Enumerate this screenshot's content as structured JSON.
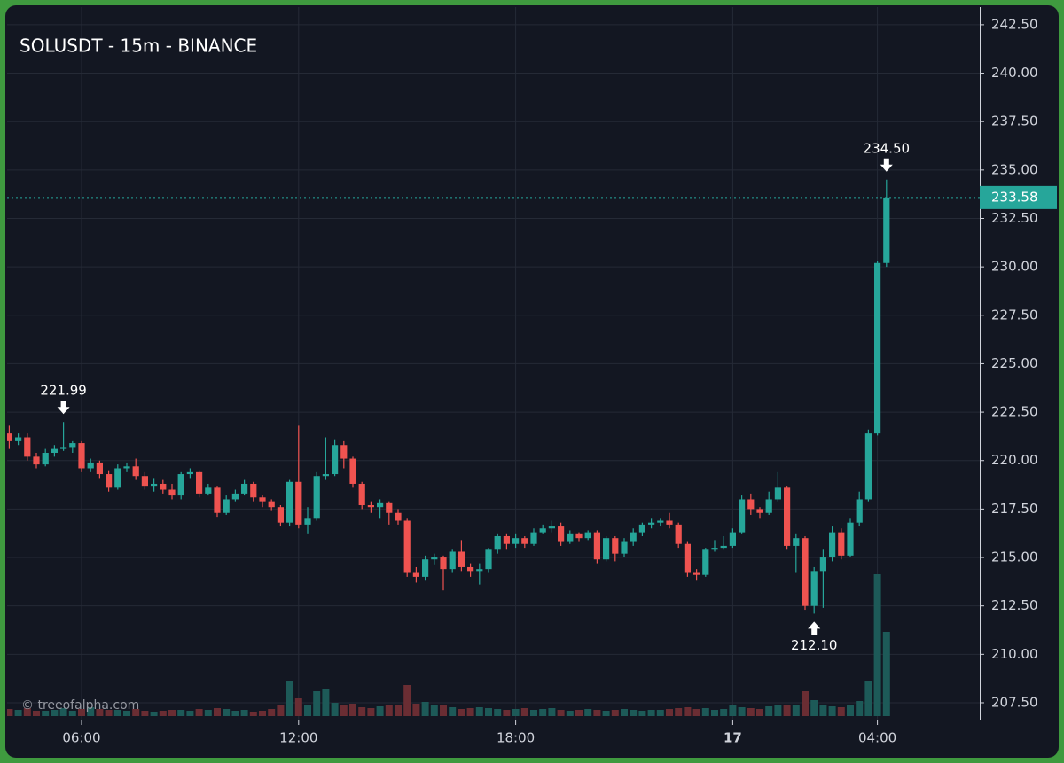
{
  "chart_data": {
    "type": "candlestick",
    "title": "SOLUSDT - 15m - BINANCE",
    "watermark": "© treeofalpha.com",
    "x": [
      "16 04:00",
      "16 04:15",
      "16 04:30",
      "16 04:45",
      "16 05:00",
      "16 05:15",
      "16 05:30",
      "16 05:45",
      "16 06:00",
      "16 06:15",
      "16 06:30",
      "16 06:45",
      "16 07:00",
      "16 07:15",
      "16 07:30",
      "16 07:45",
      "16 08:00",
      "16 08:15",
      "16 08:30",
      "16 08:45",
      "16 09:00",
      "16 09:15",
      "16 09:30",
      "16 09:45",
      "16 10:00",
      "16 10:15",
      "16 10:30",
      "16 10:45",
      "16 11:00",
      "16 11:15",
      "16 11:30",
      "16 11:45",
      "16 12:00",
      "16 12:15",
      "16 12:30",
      "16 12:45",
      "16 13:00",
      "16 13:15",
      "16 13:30",
      "16 13:45",
      "16 14:00",
      "16 14:15",
      "16 14:30",
      "16 14:45",
      "16 15:00",
      "16 15:15",
      "16 15:30",
      "16 15:45",
      "16 16:00",
      "16 16:15",
      "16 16:30",
      "16 16:45",
      "16 17:00",
      "16 17:15",
      "16 17:30",
      "16 17:45",
      "16 18:00",
      "16 18:15",
      "16 18:30",
      "16 18:45",
      "16 19:00",
      "16 19:15",
      "16 19:30",
      "16 19:45",
      "16 20:00",
      "16 20:15",
      "16 20:30",
      "16 20:45",
      "16 21:00",
      "16 21:15",
      "16 21:30",
      "16 21:45",
      "16 22:00",
      "16 22:15",
      "16 22:30",
      "16 22:45",
      "16 23:00",
      "16 23:15",
      "16 23:30",
      "16 23:45",
      "17 00:00",
      "17 00:15",
      "17 00:30",
      "17 00:45",
      "17 01:00",
      "17 01:15",
      "17 01:30",
      "17 01:45",
      "17 02:00",
      "17 02:15",
      "17 02:30",
      "17 02:45",
      "17 03:00",
      "17 03:15",
      "17 03:30",
      "17 03:45",
      "17 04:00",
      "17 04:15"
    ],
    "open": [
      221.4,
      221.0,
      221.2,
      220.2,
      219.8,
      220.4,
      220.6,
      220.7,
      220.9,
      219.6,
      219.9,
      219.3,
      218.6,
      219.6,
      219.7,
      219.2,
      218.7,
      218.8,
      218.5,
      218.2,
      219.3,
      219.4,
      218.3,
      218.6,
      217.3,
      218.0,
      218.3,
      218.8,
      218.1,
      217.9,
      217.6,
      216.8,
      218.9,
      216.7,
      217.0,
      219.2,
      219.3,
      220.8,
      220.1,
      218.8,
      217.7,
      217.6,
      217.8,
      217.3,
      216.9,
      214.2,
      214.0,
      214.9,
      215.0,
      214.4,
      215.3,
      214.5,
      214.3,
      214.4,
      215.4,
      216.1,
      215.7,
      216.0,
      215.7,
      216.3,
      216.5,
      216.6,
      215.8,
      216.2,
      216.0,
      216.3,
      214.9,
      216.0,
      215.2,
      215.8,
      216.3,
      216.7,
      216.8,
      216.9,
      216.7,
      215.7,
      214.2,
      214.1,
      215.4,
      215.5,
      215.6,
      216.3,
      218.0,
      217.5,
      217.3,
      218.0,
      218.6,
      215.6,
      216.0,
      212.5,
      214.3,
      215.0,
      216.3,
      215.1,
      216.8,
      218.0,
      221.4,
      230.2
    ],
    "high": [
      221.8,
      221.4,
      221.4,
      220.4,
      220.6,
      220.8,
      221.99,
      221.0,
      221.0,
      220.1,
      220.0,
      219.5,
      219.8,
      219.9,
      220.1,
      219.4,
      219.1,
      219.0,
      218.8,
      219.4,
      219.6,
      219.5,
      218.8,
      218.7,
      218.2,
      218.5,
      219.0,
      218.9,
      218.2,
      218.0,
      217.7,
      219.0,
      221.8,
      217.6,
      219.4,
      221.2,
      221.1,
      221.0,
      220.2,
      218.9,
      217.9,
      218.0,
      217.9,
      217.5,
      217.0,
      214.5,
      215.1,
      215.2,
      215.1,
      215.4,
      215.9,
      214.7,
      214.7,
      215.5,
      216.2,
      216.2,
      216.2,
      216.1,
      216.5,
      216.7,
      216.9,
      216.8,
      216.4,
      216.3,
      216.4,
      216.4,
      216.1,
      216.1,
      216.0,
      216.5,
      216.8,
      217.0,
      217.0,
      217.3,
      216.8,
      215.8,
      214.4,
      215.5,
      215.9,
      216.1,
      216.5,
      218.2,
      218.3,
      217.6,
      218.4,
      219.4,
      218.7,
      216.2,
      216.1,
      214.5,
      215.4,
      216.6,
      216.5,
      217.0,
      218.4,
      221.6,
      230.3,
      234.5
    ],
    "low": [
      220.6,
      220.8,
      220.0,
      219.6,
      219.7,
      220.2,
      220.5,
      220.4,
      219.4,
      219.4,
      219.1,
      218.4,
      218.5,
      219.4,
      219.0,
      218.5,
      218.4,
      218.3,
      218.0,
      218.0,
      219.1,
      218.1,
      218.2,
      217.1,
      217.2,
      217.9,
      218.2,
      217.9,
      217.6,
      217.4,
      216.6,
      216.6,
      216.5,
      216.2,
      216.9,
      219.0,
      219.2,
      219.6,
      218.6,
      217.5,
      217.3,
      217.0,
      216.7,
      216.7,
      214.0,
      213.7,
      213.8,
      214.6,
      213.3,
      214.2,
      214.3,
      214.0,
      213.6,
      214.2,
      215.2,
      215.4,
      215.5,
      215.5,
      215.6,
      216.2,
      216.3,
      215.6,
      215.7,
      215.8,
      215.9,
      214.7,
      214.8,
      214.8,
      215.0,
      215.6,
      216.1,
      216.5,
      216.6,
      216.5,
      215.5,
      214.0,
      213.8,
      214.0,
      215.3,
      215.4,
      215.5,
      216.2,
      217.2,
      217.0,
      217.2,
      217.9,
      215.4,
      214.2,
      212.3,
      212.1,
      212.4,
      214.8,
      214.9,
      215.0,
      216.6,
      217.9,
      221.3,
      230.0
    ],
    "close": [
      221.0,
      221.2,
      220.2,
      219.8,
      220.4,
      220.6,
      220.7,
      220.9,
      219.6,
      219.9,
      219.3,
      218.6,
      219.6,
      219.7,
      219.2,
      218.7,
      218.8,
      218.5,
      218.2,
      219.3,
      219.4,
      218.3,
      218.6,
      217.3,
      218.0,
      218.3,
      218.8,
      218.1,
      217.9,
      217.6,
      216.8,
      218.9,
      216.7,
      217.0,
      219.2,
      219.3,
      220.8,
      220.1,
      218.8,
      217.7,
      217.6,
      217.8,
      217.3,
      216.9,
      214.2,
      214.0,
      214.9,
      215.0,
      214.4,
      215.3,
      214.5,
      214.3,
      214.4,
      215.4,
      216.1,
      215.7,
      216.0,
      215.7,
      216.3,
      216.5,
      216.6,
      215.8,
      216.2,
      216.0,
      216.3,
      214.9,
      216.0,
      215.2,
      215.8,
      216.3,
      216.7,
      216.8,
      216.9,
      216.7,
      215.7,
      214.2,
      214.1,
      215.4,
      215.5,
      215.6,
      216.3,
      218.0,
      217.5,
      217.3,
      218.0,
      218.6,
      215.6,
      216.0,
      212.5,
      214.3,
      215.0,
      216.3,
      215.1,
      216.8,
      218.0,
      221.4,
      230.2,
      233.58
    ],
    "volume": [
      8,
      7,
      9,
      6,
      6,
      7,
      9,
      6,
      8,
      10,
      8,
      7,
      7,
      6,
      8,
      6,
      5,
      6,
      7,
      7,
      6,
      8,
      7,
      9,
      8,
      6,
      7,
      5,
      6,
      8,
      13,
      40,
      20,
      12,
      28,
      30,
      15,
      12,
      14,
      10,
      9,
      11,
      12,
      13,
      35,
      14,
      16,
      12,
      13,
      10,
      8,
      9,
      10,
      9,
      8,
      7,
      8,
      9,
      7,
      8,
      9,
      7,
      6,
      7,
      8,
      7,
      6,
      7,
      8,
      7,
      6,
      7,
      7,
      8,
      9,
      10,
      8,
      9,
      7,
      8,
      12,
      10,
      9,
      8,
      11,
      13,
      12,
      12,
      28,
      18,
      12,
      11,
      10,
      13,
      17,
      40,
      160,
      95
    ],
    "up_color": "#26a69a",
    "down_color": "#ef5350",
    "volume_up_color": "#1d5a58",
    "volume_down_color": "#6a2d33",
    "ylim": [
      206.63,
      243.41
    ],
    "yticks": [
      {
        "value": 207.5,
        "label": "207.50"
      },
      {
        "value": 210,
        "label": "210.00"
      },
      {
        "value": 212.5,
        "label": "212.50"
      },
      {
        "value": 215,
        "label": "215.00"
      },
      {
        "value": 217.5,
        "label": "217.50"
      },
      {
        "value": 220,
        "label": "220.00"
      },
      {
        "value": 222.5,
        "label": "222.50"
      },
      {
        "value": 225,
        "label": "225.00"
      },
      {
        "value": 227.5,
        "label": "227.50"
      },
      {
        "value": 230,
        "label": "230.00"
      },
      {
        "value": 232.5,
        "label": "232.50"
      },
      {
        "value": 235,
        "label": "235.00"
      },
      {
        "value": 237.5,
        "label": "237.50"
      },
      {
        "value": 240,
        "label": "240.00"
      },
      {
        "value": 242.5,
        "label": "242.50"
      }
    ],
    "xticks": [
      {
        "value": "16 06:00",
        "label": "06:00"
      },
      {
        "value": "16 12:00",
        "label": "12:00"
      },
      {
        "value": "16 18:00",
        "label": "18:00"
      },
      {
        "value": "17 00:00",
        "label": "17"
      },
      {
        "value": "17 04:00",
        "label": "04:00"
      }
    ],
    "last_price": 233.58,
    "annotations": [
      {
        "x": "16 05:30",
        "value": 221.99,
        "position": "above"
      },
      {
        "x": "17 02:15",
        "value": 212.1,
        "label": "212.10",
        "position": "below"
      },
      {
        "x": "17 04:15",
        "value": 234.5,
        "label": "234.50",
        "position": "above"
      }
    ],
    "grid": true
  }
}
